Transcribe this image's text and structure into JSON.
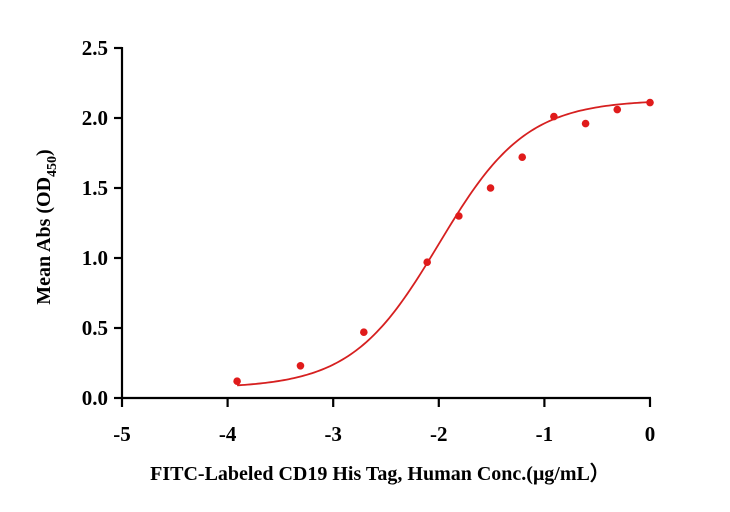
{
  "chart_data": {
    "type": "scatter",
    "xlabel": "FITC-Labeled CD19 His Tag, Human  Conc.(μg/mL）",
    "ylabel_main": "Mean Abs (OD",
    "ylabel_sub": "450",
    "ylabel_close": ")",
    "xlim": [
      -5,
      0
    ],
    "ylim": [
      0,
      2.5
    ],
    "xticks": [
      -5,
      -4,
      -3,
      -2,
      -1,
      0
    ],
    "xtick_labels": [
      "-5",
      "-4",
      "-3",
      "-2",
      "-1",
      "0"
    ],
    "yticks": [
      0,
      0.5,
      1.0,
      1.5,
      2.0,
      2.5
    ],
    "ytick_labels": [
      "0.0",
      "0.5",
      "1.0",
      "1.5",
      "2.0",
      "2.5"
    ],
    "grid": false,
    "series": [
      {
        "color": "#e01b1b",
        "x": [
          -3.91,
          -3.31,
          -2.71,
          -2.11,
          -1.81,
          -1.51,
          -1.21,
          -0.91,
          -0.61,
          -0.31,
          0.0
        ],
        "y": [
          0.12,
          0.23,
          0.47,
          0.97,
          1.3,
          1.5,
          1.72,
          2.01,
          1.96,
          2.06,
          2.11
        ]
      }
    ],
    "fit": {
      "model": "4PL",
      "bottom": 0.07,
      "top": 2.13,
      "logEC50": -2.0,
      "hill": 1.05,
      "color": "#d62020"
    }
  }
}
